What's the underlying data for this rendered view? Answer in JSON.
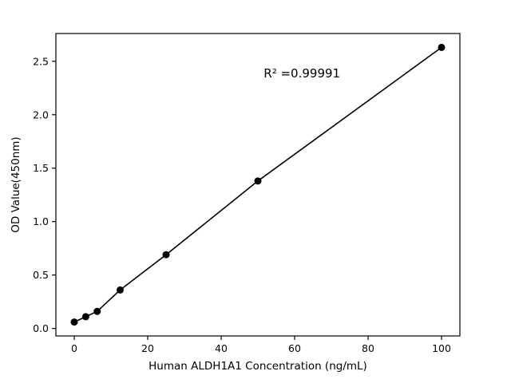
{
  "chart_data": {
    "type": "scatter",
    "title": "",
    "xlabel": "Human ALDH1A1 Concentration (ng/mL)",
    "ylabel": "OD Value(450nm)",
    "x": [
      0,
      3.125,
      6.25,
      12.5,
      25,
      50,
      100
    ],
    "y": [
      0.06,
      0.11,
      0.16,
      0.36,
      0.69,
      1.38,
      2.63
    ],
    "line": true,
    "marker_color": "#000000",
    "line_color": "#000000",
    "xlim": [
      -5,
      105
    ],
    "ylim": [
      -0.07,
      2.76
    ],
    "x_ticks": [
      0,
      20,
      40,
      60,
      80,
      100
    ],
    "y_ticks": [
      0.0,
      0.5,
      1.0,
      1.5,
      2.0,
      2.5
    ],
    "grid": false,
    "legend": null,
    "annotation": {
      "text": "R² =0.99991",
      "x": 62,
      "y": 2.35
    }
  }
}
